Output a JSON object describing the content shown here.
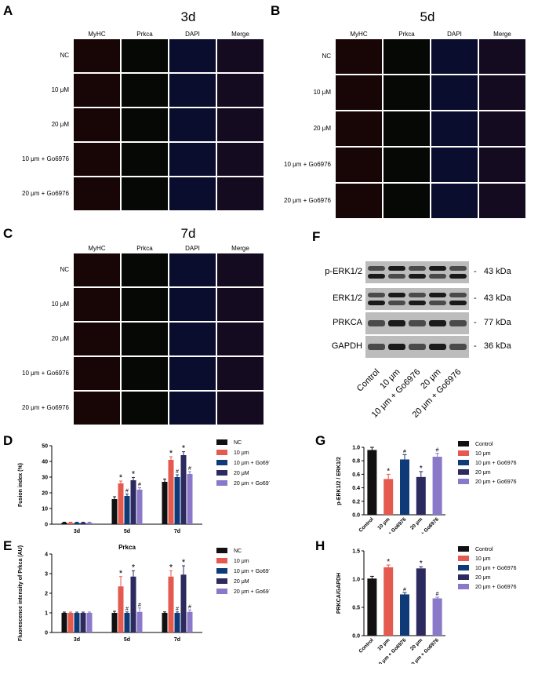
{
  "panels": {
    "A": {
      "letter": "A",
      "title": "3d"
    },
    "B": {
      "letter": "B",
      "title": "5d"
    },
    "C": {
      "letter": "C",
      "title": "7d"
    },
    "F": {
      "letter": "F"
    },
    "D": {
      "letter": "D"
    },
    "E": {
      "letter": "E",
      "title": "Prkca"
    },
    "G": {
      "letter": "G"
    },
    "H": {
      "letter": "H"
    }
  },
  "micro_columns": [
    "MyHC",
    "Prkca",
    "DAPI",
    "Merge"
  ],
  "micro_rows_A": [
    "NC",
    "10 μM",
    "20 μM",
    "10 μm + Go6976",
    "20 μm + Go6976"
  ],
  "micro_rows_B": [
    "NC",
    "10 μM",
    "20 μM",
    "10 μm + Go6976",
    "20 μm + Go6976"
  ],
  "micro_rows_C": [
    "NC",
    "10 μM",
    "20 μM",
    "10 μm + Go6976",
    "20 μm + Go6976"
  ],
  "blot": {
    "bands": [
      {
        "name": "p-ERK1/2",
        "kda": "43 kDa"
      },
      {
        "name": "ERK1/2",
        "kda": "43 kDa"
      },
      {
        "name": "PRKCA",
        "kda": "77 kDa"
      },
      {
        "name": "GAPDH",
        "kda": "36 kDa"
      }
    ],
    "lanes": [
      "Control",
      "10 μm",
      "10 μm + Go6976",
      "20 μm",
      "20 μm + Go6976"
    ]
  },
  "chart_data": [
    {
      "id": "D",
      "type": "bar",
      "title": "",
      "ylabel": "Fusion index (%)",
      "xlabel": "",
      "ylim": [
        0,
        50
      ],
      "yticks": [
        0,
        10,
        20,
        30,
        40,
        50
      ],
      "categories": [
        "3d",
        "5d",
        "7d"
      ],
      "series": [
        {
          "name": "NC",
          "color": "#111111",
          "values": [
            1,
            16,
            27
          ],
          "err": [
            0.3,
            1.5,
            1.8
          ],
          "marks": [
            "",
            "",
            ""
          ]
        },
        {
          "name": "10 μm",
          "color": "#e45a4f",
          "values": [
            1,
            26,
            41
          ],
          "err": [
            0.3,
            1.5,
            2
          ],
          "marks": [
            "",
            "*",
            "*"
          ]
        },
        {
          "name": "10 μm + Go6976",
          "color": "#0e3a78",
          "values": [
            1,
            18,
            30
          ],
          "err": [
            0.3,
            1.2,
            1.5
          ],
          "marks": [
            "",
            "#",
            "#"
          ]
        },
        {
          "name": "20 μM",
          "color": "#2c2a5e",
          "values": [
            1,
            28,
            44
          ],
          "err": [
            0.3,
            1.8,
            2.2
          ],
          "marks": [
            "",
            "*",
            "*"
          ]
        },
        {
          "name": "20 μm + Go6976",
          "color": "#8a78c8",
          "values": [
            1,
            22,
            32
          ],
          "err": [
            0.3,
            1.2,
            1.5
          ],
          "marks": [
            "",
            "#",
            "#"
          ]
        }
      ]
    },
    {
      "id": "E",
      "type": "bar",
      "title": "Prkca",
      "ylabel": "Fluorescence intensity of Prkca (AU)",
      "xlabel": "",
      "ylim": [
        0,
        4
      ],
      "yticks": [
        0,
        1,
        2,
        3,
        4
      ],
      "categories": [
        "3d",
        "5d",
        "7d"
      ],
      "series": [
        {
          "name": "NC",
          "color": "#111111",
          "values": [
            1,
            1,
            1
          ],
          "err": [
            0.04,
            0.08,
            0.05
          ],
          "marks": [
            "",
            "",
            ""
          ]
        },
        {
          "name": "10 μm",
          "color": "#e45a4f",
          "values": [
            1,
            2.35,
            2.85
          ],
          "err": [
            0.04,
            0.5,
            0.3
          ],
          "marks": [
            "",
            "*",
            "*"
          ]
        },
        {
          "name": "10 μm + Go6976",
          "color": "#0e3a78",
          "values": [
            1,
            1,
            1
          ],
          "err": [
            0.04,
            0.05,
            0.05
          ],
          "marks": [
            "",
            "#",
            "#"
          ]
        },
        {
          "name": "20 μM",
          "color": "#2c2a5e",
          "values": [
            1,
            2.85,
            2.95
          ],
          "err": [
            0.04,
            0.3,
            0.45
          ],
          "marks": [
            "",
            "*",
            "*"
          ]
        },
        {
          "name": "20 μm + Go6976",
          "color": "#8a78c8",
          "values": [
            1,
            1.05,
            1.05
          ],
          "err": [
            0.04,
            0.2,
            0.1
          ],
          "marks": [
            "",
            "#",
            "#"
          ]
        }
      ]
    },
    {
      "id": "G",
      "type": "bar",
      "title": "",
      "ylabel": "p-ERK1/2 / ERK1/2",
      "xlabel": "",
      "ylim": [
        0,
        1.0
      ],
      "yticks": [
        0.0,
        0.2,
        0.4,
        0.6,
        0.8,
        1.0
      ],
      "categories": [
        "Control",
        "10 μm",
        "10 μm + Go6976",
        "20 μm",
        "20 μm + Go6976"
      ],
      "legend": [
        "Control",
        "10 μm",
        "10 μm + Go6976",
        "20 μm",
        "20 μm + Go6976"
      ],
      "colors": [
        "#111111",
        "#e45a4f",
        "#0e3a78",
        "#2c2a5e",
        "#8a78c8"
      ],
      "values": [
        0.96,
        0.53,
        0.82,
        0.56,
        0.86
      ],
      "err": [
        0.04,
        0.07,
        0.07,
        0.08,
        0.05
      ],
      "marks": [
        "",
        "*",
        "#",
        "*",
        "#"
      ]
    },
    {
      "id": "H",
      "type": "bar",
      "title": "",
      "ylabel": "PRKCA/GAPDH",
      "xlabel": "",
      "ylim": [
        0,
        1.5
      ],
      "yticks": [
        0.0,
        0.5,
        1.0,
        1.5
      ],
      "categories": [
        "Control",
        "10 μm",
        "10 μm + Go6976",
        "20 μm",
        "20 μm + Go6976"
      ],
      "legend": [
        "Control",
        "10 μm",
        "10 μm + Go6976",
        "20 μm",
        "20 μm + Go6976"
      ],
      "colors": [
        "#111111",
        "#e45a4f",
        "#0e3a78",
        "#2c2a5e",
        "#8a78c8"
      ],
      "values": [
        1.01,
        1.21,
        0.73,
        1.19,
        0.66
      ],
      "err": [
        0.04,
        0.04,
        0.03,
        0.03,
        0.02
      ],
      "marks": [
        "",
        "*",
        "#",
        "*",
        "#"
      ]
    }
  ]
}
